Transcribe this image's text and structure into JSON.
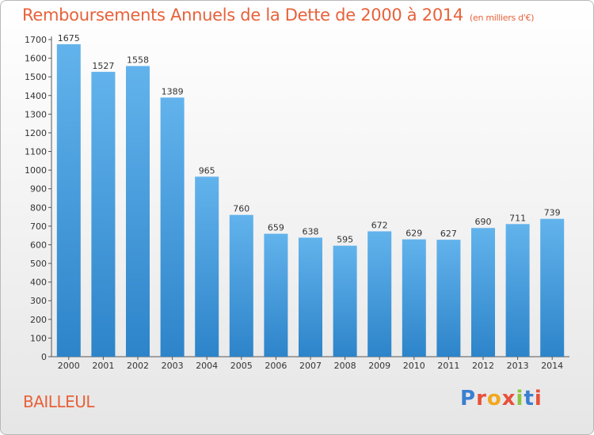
{
  "header": {
    "title": "Remboursements Annuels de la Dette de 2000 à 2014",
    "unit": "(en milliers d'€)"
  },
  "footer": {
    "place": "BAILLEUL",
    "logo": [
      "P",
      "r",
      "o",
      "x",
      "i",
      "t",
      "i"
    ]
  },
  "colors": {
    "accent": "#e8613a",
    "bar_light": "#62b3ec",
    "bar_dark": "#2d84c9"
  },
  "chart_data": {
    "type": "bar",
    "title": "Remboursements Annuels de la Dette de 2000 à 2014",
    "subtitle": "(en milliers d'€)",
    "xlabel": "",
    "ylabel": "",
    "categories": [
      "2000",
      "2001",
      "2002",
      "2003",
      "2004",
      "2005",
      "2006",
      "2007",
      "2008",
      "2009",
      "2010",
      "2011",
      "2012",
      "2013",
      "2014"
    ],
    "values": [
      1675,
      1527,
      1558,
      1389,
      965,
      760,
      659,
      638,
      595,
      672,
      629,
      627,
      690,
      711,
      739
    ],
    "ylim": [
      0,
      1700
    ],
    "yticks": [
      0,
      100,
      200,
      300,
      400,
      500,
      600,
      700,
      800,
      900,
      1000,
      1100,
      1200,
      1300,
      1400,
      1500,
      1600,
      1700
    ],
    "grid": false,
    "legend": "none"
  }
}
